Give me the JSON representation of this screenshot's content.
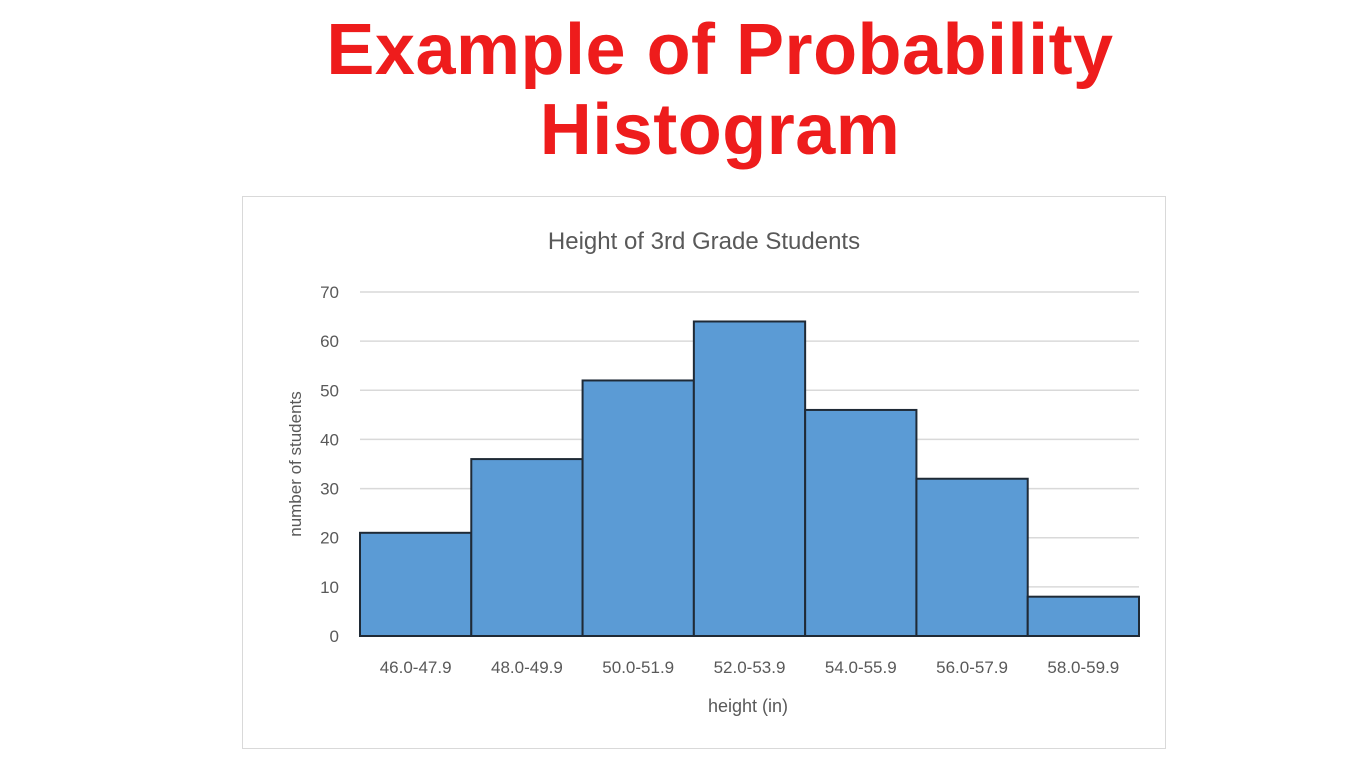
{
  "headline": {
    "line1": "Example of Probability",
    "line2": "Histogram"
  },
  "colors": {
    "headline": "#ee1c1c",
    "bar_fill": "#5b9bd5",
    "bar_stroke": "#1f2a36",
    "gridline": "#d9d9d9",
    "text": "#595959"
  },
  "chart_data": {
    "type": "bar",
    "title": "Height of 3rd Grade Students",
    "xlabel": "height (in)",
    "ylabel": "number of students",
    "categories": [
      "46.0-47.9",
      "48.0-49.9",
      "50.0-51.9",
      "52.0-53.9",
      "54.0-55.9",
      "56.0-57.9",
      "58.0-59.9"
    ],
    "values": [
      21,
      36,
      52,
      64,
      46,
      32,
      8
    ],
    "ylim": [
      0,
      70
    ],
    "yticks": [
      0,
      10,
      20,
      30,
      40,
      50,
      60,
      70
    ],
    "grid": true,
    "legend": "none"
  }
}
